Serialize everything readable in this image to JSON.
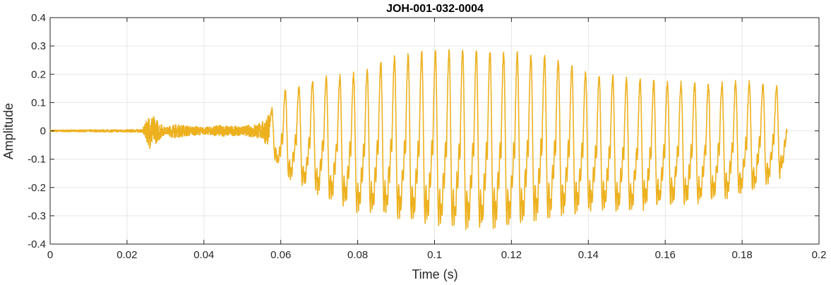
{
  "chart_data": {
    "type": "line",
    "title": "JOH-001-032-0004",
    "xlabel": "Time (s)",
    "ylabel": "Amplitude",
    "xlim": [
      0,
      0.2
    ],
    "ylim": [
      -0.4,
      0.4
    ],
    "grid": true,
    "x_ticks": [
      0,
      0.02,
      0.04,
      0.06,
      0.08,
      0.1,
      0.12,
      0.14,
      0.16,
      0.18,
      0.2
    ],
    "x_tick_labels": [
      "0",
      "0.02",
      "0.04",
      "0.06",
      "0.08",
      "0.1",
      "0.12",
      "0.14",
      "0.16",
      "0.18",
      "0.2"
    ],
    "y_ticks": [
      0.4,
      0.3,
      0.2,
      0.1,
      0,
      -0.1,
      -0.2,
      -0.3,
      -0.4
    ],
    "y_tick_labels": [
      "0.4",
      "0.3",
      "0.2",
      "0.1",
      "0",
      "-0.1",
      "-0.2",
      "-0.3",
      "-0.4"
    ],
    "series": [
      {
        "color": "#EDB120",
        "x_start": 0,
        "x_end": 0.1917,
        "envelope_time": [
          0,
          0.024,
          0.026,
          0.03,
          0.032,
          0.04,
          0.044,
          0.05,
          0.055,
          0.057,
          0.06,
          0.07,
          0.08,
          0.09,
          0.1,
          0.11,
          0.12,
          0.13,
          0.14,
          0.15,
          0.16,
          0.17,
          0.18,
          0.19,
          0.1917
        ],
        "envelope_max": [
          0.003,
          0.005,
          0.065,
          0.01,
          0.025,
          0.012,
          0.02,
          0.015,
          0.03,
          0.06,
          0.13,
          0.18,
          0.2,
          0.26,
          0.28,
          0.28,
          0.27,
          0.26,
          0.2,
          0.18,
          0.17,
          0.16,
          0.17,
          0.15,
          0.06
        ],
        "envelope_min": [
          -0.003,
          -0.005,
          -0.06,
          -0.01,
          -0.02,
          -0.012,
          -0.015,
          -0.012,
          -0.03,
          -0.05,
          -0.15,
          -0.22,
          -0.28,
          -0.3,
          -0.33,
          -0.34,
          -0.33,
          -0.3,
          -0.28,
          -0.28,
          -0.26,
          -0.25,
          -0.22,
          -0.16,
          -0.06
        ],
        "pitch_period_s": 0.00355
      }
    ]
  }
}
